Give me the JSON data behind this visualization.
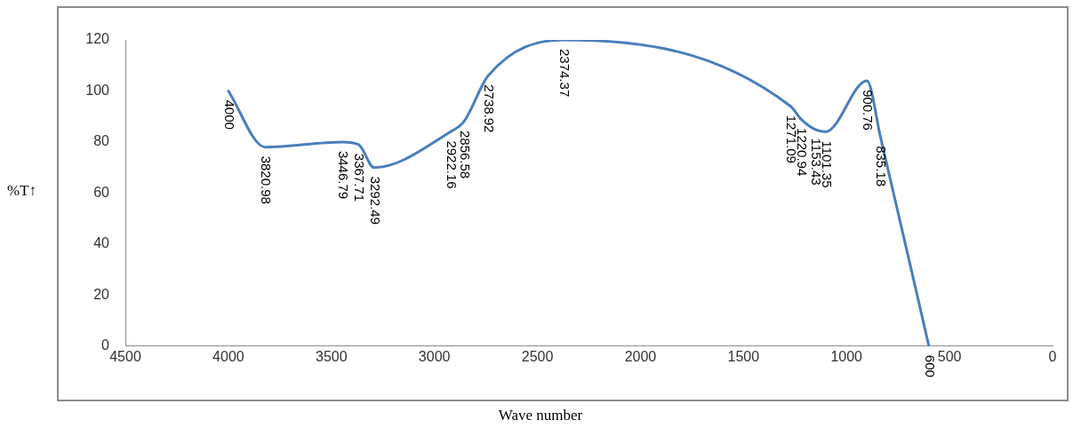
{
  "chart_data": {
    "type": "line",
    "xlabel": "Wave number",
    "ylabel": "%T↑",
    "x": [
      4000,
      3820.98,
      3446.79,
      3367.71,
      3292.49,
      2922.16,
      2856.58,
      2738.92,
      2374.37,
      1271.09,
      1220.94,
      1153.43,
      1101.35,
      900.76,
      835.18,
      600
    ],
    "series": [
      {
        "color": "#4a7ebb",
        "values": [
          100,
          78,
          80,
          79,
          70,
          84,
          88,
          106,
          120,
          94,
          89,
          85,
          84,
          104,
          82,
          0
        ]
      }
    ],
    "xlim": [
      4500,
      0
    ],
    "xticks": [
      4500,
      4000,
      3500,
      3000,
      2500,
      2000,
      1500,
      1000,
      500,
      0
    ],
    "ylim": [
      0,
      120
    ],
    "yticks": [
      0,
      20,
      40,
      60,
      80,
      100,
      120
    ],
    "grid": false,
    "legend": false,
    "marker": "none",
    "line_style": "solid",
    "annotations": [
      {
        "text": "4000",
        "x": 4000,
        "y": 100
      },
      {
        "text": "3820.98",
        "x": 3820.98,
        "y": 78
      },
      {
        "text": "3446.79",
        "x": 3446.79,
        "y": 80
      },
      {
        "text": "3367.71",
        "x": 3367.71,
        "y": 79
      },
      {
        "text": "3292.49",
        "x": 3292.49,
        "y": 70
      },
      {
        "text": "2922.16",
        "x": 2922.16,
        "y": 84
      },
      {
        "text": "2856.58",
        "x": 2856.58,
        "y": 88
      },
      {
        "text": "2738.92",
        "x": 2738.92,
        "y": 106
      },
      {
        "text": "2374.37",
        "x": 2374.37,
        "y": 120
      },
      {
        "text": "1271.09",
        "x": 1271.09,
        "y": 94
      },
      {
        "text": "1220.94",
        "x": 1220.94,
        "y": 89
      },
      {
        "text": "1153.43",
        "x": 1153.43,
        "y": 85
      },
      {
        "text": "1101.35",
        "x": 1101.35,
        "y": 84
      },
      {
        "text": "900.76",
        "x": 900.76,
        "y": 104
      },
      {
        "text": "835.18",
        "x": 835.18,
        "y": 82
      },
      {
        "text": "600",
        "x": 600,
        "y": 0
      }
    ]
  }
}
